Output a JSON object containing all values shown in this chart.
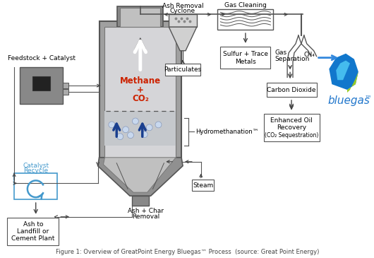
{
  "title": "Figure 1: Overview of GreatPoint Energy Bluegas™ Process  (source: Great Point Energy)",
  "bg_color": "#ffffff",
  "reactor_label_methane": "Methane",
  "reactor_label_plus": "+",
  "reactor_label_co2": "CO₂",
  "reactor_label_color": "#cc2200",
  "hydromethanation_label": "Hydromethanation™",
  "feedstock_label": "Feedstock + Catalyst",
  "catalyst_recycle_color": "#4499cc",
  "ash_char_label": "Ash + Char\nRemoval",
  "steam_label": "Steam",
  "ash_removal_cyclone_label": "Ash Removal\nCyclone",
  "gas_cleaning_label": "Gas Cleaning",
  "particulates_label": "Particulates",
  "sulfur_label": "Sulfur + Trace\nMetals",
  "gas_separation_label": "Gas\nSeparation",
  "ch4_label": "CH₄",
  "carbon_dioxide_label": "Carbon Dioxide",
  "eor_label": "Enhanced Oil\nRecovery\n(CO₂ Sequestration)",
  "ash_landfill_label": "Ash to\nLandfill or\nCement Plant",
  "bluegas_label": "bluegas",
  "bluegas_tm": "™",
  "bluegas_color": "#2277cc",
  "arrow_color": "#444444",
  "blue_arrow_color": "#1a3f8f",
  "box_edge_color": "#555555"
}
